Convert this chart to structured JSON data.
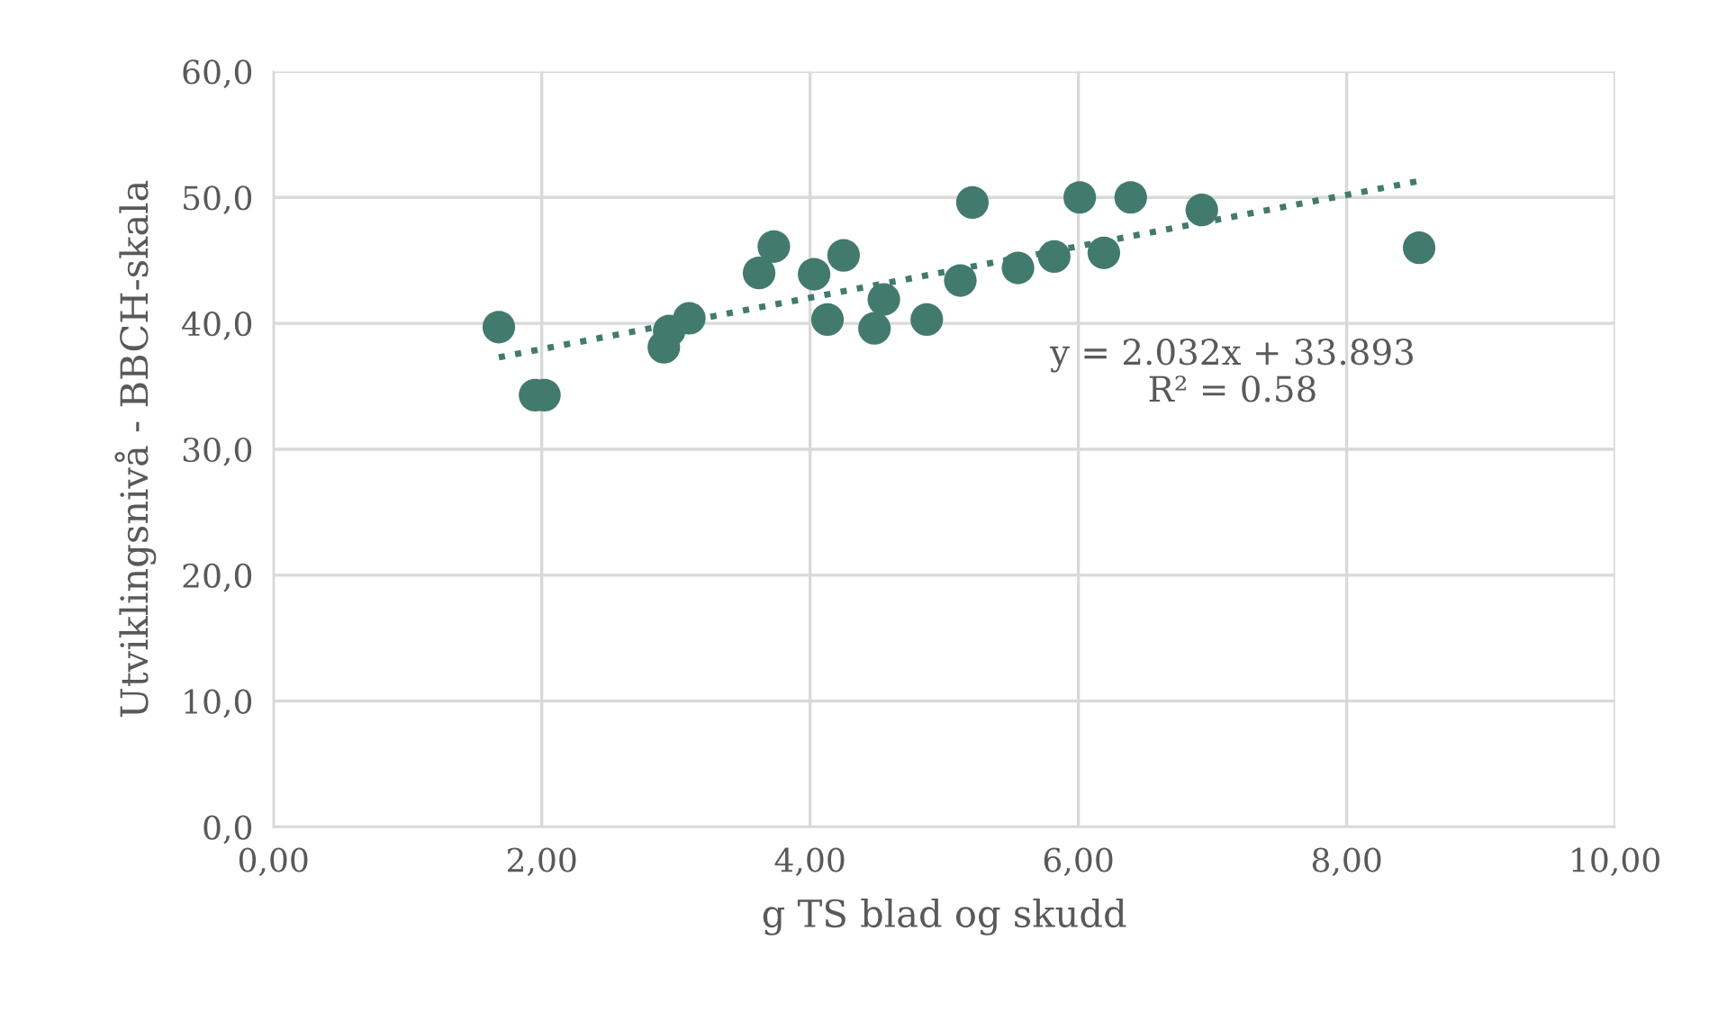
{
  "chart_data": {
    "type": "scatter",
    "xlabel": "g TS blad og skudd",
    "ylabel": "Utviklingsnivå - BBCH-skala",
    "xlim": [
      0,
      10
    ],
    "xticks": [
      {
        "value": 0,
        "label": "0,00"
      },
      {
        "value": 2,
        "label": "2,00"
      },
      {
        "value": 4,
        "label": "4,00"
      },
      {
        "value": 6,
        "label": "6,00"
      },
      {
        "value": 8,
        "label": "8,00"
      },
      {
        "value": 10,
        "label": "10,00"
      }
    ],
    "ylim": [
      0,
      60
    ],
    "yticks": [
      {
        "value": 0,
        "label": "0,0"
      },
      {
        "value": 10,
        "label": "10,0"
      },
      {
        "value": 20,
        "label": "20,0"
      },
      {
        "value": 30,
        "label": "30,0"
      },
      {
        "value": 40,
        "label": "40,0"
      },
      {
        "value": 50,
        "label": "50,0"
      },
      {
        "value": 60,
        "label": "60,0"
      }
    ],
    "grid": true,
    "series": [
      {
        "marker": "circle",
        "color": "#437a6e",
        "x": [
          1.68,
          1.95,
          2.02,
          2.91,
          2.95,
          3.1,
          3.62,
          3.73,
          4.03,
          4.13,
          4.25,
          4.48,
          4.55,
          4.87,
          5.12,
          5.21,
          5.55,
          5.82,
          6.01,
          6.19,
          6.39,
          6.92,
          8.54
        ],
        "values": [
          39.7,
          34.3,
          34.3,
          38.1,
          39.4,
          40.4,
          44.0,
          46.1,
          43.9,
          40.3,
          45.4,
          39.6,
          41.9,
          40.3,
          43.4,
          49.6,
          44.4,
          45.3,
          50.0,
          45.6,
          50.0,
          49.0,
          46.0
        ]
      },
      {
        "type": "line",
        "marker": "none",
        "color": "#437a6e",
        "line_style": "dotted",
        "x": [
          1.68,
          8.54
        ],
        "values": [
          37.3,
          51.3
        ]
      }
    ],
    "annotations": [
      "y = 2.032x + 33.893\nR² = 0.58"
    ]
  }
}
